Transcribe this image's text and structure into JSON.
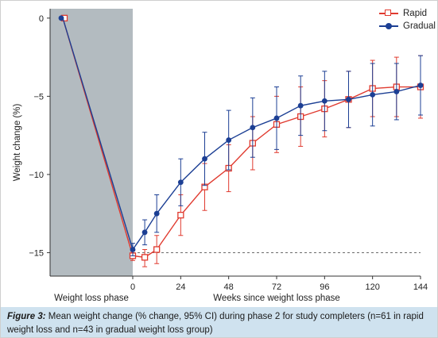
{
  "chart_data": {
    "type": "line",
    "xlabel": "Weeks since weight loss phase",
    "ylabel": "Weight change (%)",
    "shaded_label": "Weight loss phase",
    "xticks": [
      0,
      24,
      48,
      72,
      96,
      120,
      144
    ],
    "yticks": [
      0,
      -5,
      -10,
      -15
    ],
    "xlim": [
      -24,
      144
    ],
    "ylim": [
      -16.5,
      0.6
    ],
    "reference_line": -15,
    "series": [
      {
        "name": "Rapid",
        "color": "#e03a2f",
        "marker": "open-square",
        "start": 0,
        "x": [
          0,
          6,
          12,
          24,
          36,
          48,
          60,
          72,
          84,
          96,
          108,
          120,
          132,
          144
        ],
        "y": [
          -15.2,
          -15.3,
          -14.8,
          -12.6,
          -10.8,
          -9.6,
          -8.0,
          -6.8,
          -6.3,
          -5.8,
          -5.2,
          -4.5,
          -4.4,
          -4.4
        ],
        "lower": [
          -15.5,
          -15.9,
          -15.7,
          -13.9,
          -12.3,
          -11.1,
          -9.7,
          -8.6,
          -8.2,
          -7.6,
          -7.0,
          -6.3,
          -6.3,
          -6.4
        ],
        "upper": [
          -14.9,
          -14.8,
          -13.9,
          -11.3,
          -9.3,
          -8.1,
          -6.3,
          -5.0,
          -4.4,
          -4.0,
          -3.4,
          -2.7,
          -2.5,
          -2.4
        ]
      },
      {
        "name": "Gradual",
        "color": "#1c3f94",
        "marker": "filled-circle",
        "start": 0,
        "x": [
          0,
          6,
          12,
          24,
          36,
          48,
          60,
          72,
          84,
          96,
          108,
          120,
          132,
          144
        ],
        "y": [
          -14.8,
          -13.7,
          -12.5,
          -10.5,
          -9.0,
          -7.8,
          -7.0,
          -6.4,
          -5.6,
          -5.3,
          -5.2,
          -4.9,
          -4.7,
          -4.3
        ],
        "lower": [
          -15.2,
          -14.5,
          -13.7,
          -12.0,
          -10.7,
          -9.7,
          -8.9,
          -8.4,
          -7.5,
          -7.2,
          -7.0,
          -6.9,
          -6.5,
          -6.2
        ],
        "upper": [
          -14.4,
          -12.9,
          -11.3,
          -9.0,
          -7.3,
          -5.9,
          -5.1,
          -4.4,
          -3.7,
          -3.4,
          -3.4,
          -2.9,
          -2.9,
          -2.4
        ]
      }
    ]
  },
  "caption": {
    "figure_number": "Figure 3:",
    "text": " Mean weight change (% change, 95% CI) during phase 2 for study completers (n=61 in rapid weight loss and n=43 in gradual weight loss group)"
  }
}
